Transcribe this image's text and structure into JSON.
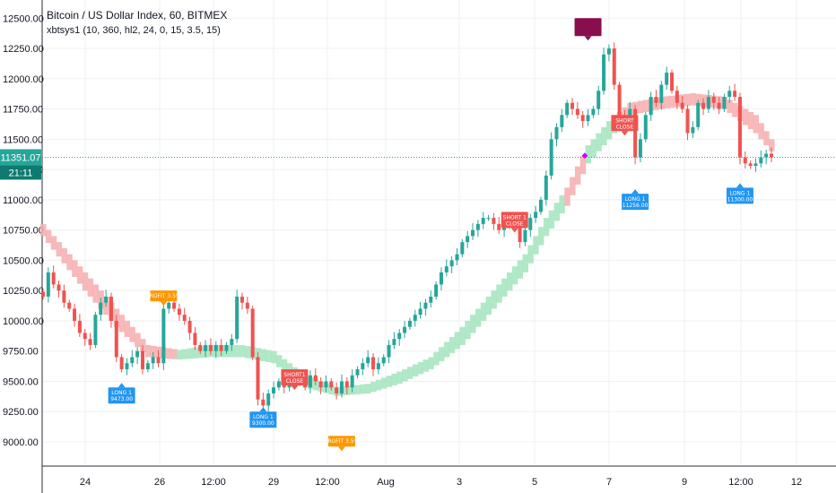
{
  "header": {
    "title": "Bitcoin / US Dollar Index, 60, BITMEX",
    "indicator": "xbtsys1 (10, 360, hl2, 24, 0, 15, 3.5, 15)"
  },
  "price_badge": {
    "value": "11351.07",
    "countdown": "21:11"
  },
  "colors": {
    "up": "#26a69a",
    "down": "#ef5350",
    "band_up": "#a8e6c1",
    "band_down": "#f6b1b1",
    "long_tag": "#2196f3",
    "short_tag": "#ef5350",
    "profit_tag": "#ff9800",
    "top_tag": "#880e4f",
    "price_line": "#26a69a"
  },
  "chart_data": {
    "type": "candlestick",
    "y_ticks": [
      "12500.00",
      "12250.00",
      "12000.00",
      "11750.00",
      "11500.00",
      "11250.00",
      "11000.00",
      "10750.00",
      "10500.00",
      "10250.00",
      "10000.00",
      "9750.00",
      "9500.00",
      "9250.00",
      "9000.00"
    ],
    "ylim": [
      8800,
      12650
    ],
    "x_ticks": [
      "24",
      "26",
      "12:00",
      "29",
      "12:00",
      "Aug",
      "3",
      "5",
      "7",
      "9",
      "12:00",
      "12"
    ],
    "last_price": 11351.07,
    "close_path": [
      [
        0,
        10200
      ],
      [
        1,
        10400
      ],
      [
        2,
        10300
      ],
      [
        3,
        10250
      ],
      [
        4,
        10150
      ],
      [
        5,
        10100
      ],
      [
        6,
        10000
      ],
      [
        7,
        9900
      ],
      [
        8,
        9850
      ],
      [
        9,
        9800
      ],
      [
        10,
        10050
      ],
      [
        11,
        10150
      ],
      [
        12,
        10200
      ],
      [
        13,
        10000
      ],
      [
        14,
        9700
      ],
      [
        15,
        9600
      ],
      [
        16,
        9650
      ],
      [
        17,
        9700
      ],
      [
        18,
        9750
      ],
      [
        19,
        9600
      ],
      [
        20,
        9650
      ],
      [
        21,
        9700
      ],
      [
        22,
        9650
      ],
      [
        23,
        10100
      ],
      [
        24,
        10150
      ],
      [
        25,
        10100
      ],
      [
        26,
        10050
      ],
      [
        27,
        10000
      ],
      [
        28,
        9900
      ],
      [
        29,
        9800
      ],
      [
        30,
        9750
      ],
      [
        31,
        9800
      ],
      [
        32,
        9750
      ],
      [
        33,
        9800
      ],
      [
        34,
        9750
      ],
      [
        35,
        9800
      ],
      [
        36,
        9850
      ],
      [
        37,
        10200
      ],
      [
        38,
        10150
      ],
      [
        39,
        10100
      ],
      [
        40,
        9700
      ],
      [
        41,
        9350
      ],
      [
        42,
        9300
      ],
      [
        43,
        9400
      ],
      [
        44,
        9450
      ],
      [
        45,
        9500
      ],
      [
        46,
        9450
      ],
      [
        47,
        9500
      ],
      [
        48,
        9550
      ],
      [
        49,
        9500
      ],
      [
        50,
        9450
      ],
      [
        51,
        9550
      ],
      [
        52,
        9500
      ],
      [
        53,
        9450
      ],
      [
        54,
        9500
      ],
      [
        55,
        9450
      ],
      [
        56,
        9400
      ],
      [
        57,
        9500
      ],
      [
        58,
        9450
      ],
      [
        59,
        9550
      ],
      [
        60,
        9600
      ],
      [
        61,
        9650
      ],
      [
        62,
        9700
      ],
      [
        63,
        9600
      ],
      [
        64,
        9650
      ],
      [
        65,
        9700
      ],
      [
        66,
        9800
      ],
      [
        67,
        9850
      ],
      [
        68,
        9900
      ],
      [
        69,
        9950
      ],
      [
        70,
        10000
      ],
      [
        71,
        10050
      ],
      [
        72,
        10100
      ],
      [
        73,
        10150
      ],
      [
        74,
        10200
      ],
      [
        75,
        10300
      ],
      [
        76,
        10400
      ],
      [
        77,
        10450
      ],
      [
        78,
        10500
      ],
      [
        79,
        10550
      ],
      [
        80,
        10650
      ],
      [
        81,
        10700
      ],
      [
        82,
        10750
      ],
      [
        83,
        10800
      ],
      [
        84,
        10850
      ],
      [
        85,
        10850
      ],
      [
        86,
        10800
      ],
      [
        87,
        10750
      ],
      [
        88,
        10800
      ],
      [
        89,
        10850
      ],
      [
        90,
        10800
      ],
      [
        91,
        10650
      ],
      [
        92,
        10750
      ],
      [
        93,
        10850
      ],
      [
        94,
        10900
      ],
      [
        95,
        11000
      ],
      [
        96,
        11200
      ],
      [
        97,
        11500
      ],
      [
        98,
        11600
      ],
      [
        99,
        11700
      ],
      [
        100,
        11800
      ],
      [
        101,
        11750
      ],
      [
        102,
        11700
      ],
      [
        103,
        11650
      ],
      [
        104,
        11700
      ],
      [
        105,
        11750
      ],
      [
        106,
        11900
      ],
      [
        107,
        12200
      ],
      [
        108,
        12250
      ],
      [
        109,
        11950
      ],
      [
        110,
        11700
      ],
      [
        111,
        11600
      ],
      [
        112,
        11750
      ],
      [
        113,
        11350
      ],
      [
        114,
        11500
      ],
      [
        115,
        11700
      ],
      [
        116,
        11850
      ],
      [
        117,
        11800
      ],
      [
        118,
        11950
      ],
      [
        119,
        12050
      ],
      [
        120,
        11900
      ],
      [
        121,
        11800
      ],
      [
        122,
        11750
      ],
      [
        123,
        11550
      ],
      [
        124,
        11600
      ],
      [
        125,
        11800
      ],
      [
        126,
        11750
      ],
      [
        127,
        11850
      ],
      [
        128,
        11800
      ],
      [
        129,
        11750
      ],
      [
        130,
        11850
      ],
      [
        131,
        11900
      ],
      [
        132,
        11850
      ],
      [
        133,
        11350
      ],
      [
        134,
        11300
      ],
      [
        135,
        11280
      ],
      [
        136,
        11300
      ],
      [
        137,
        11350
      ],
      [
        138,
        11380
      ],
      [
        139,
        11351
      ]
    ],
    "band": [
      [
        0,
        10700,
        10800
      ],
      [
        8,
        10250,
        10400
      ],
      [
        14,
        9950,
        10100
      ],
      [
        20,
        9700,
        9800
      ],
      [
        26,
        9680,
        9760
      ],
      [
        32,
        9700,
        9800
      ],
      [
        38,
        9700,
        9800
      ],
      [
        44,
        9650,
        9750
      ],
      [
        50,
        9450,
        9550
      ],
      [
        56,
        9380,
        9450
      ],
      [
        62,
        9400,
        9480
      ],
      [
        68,
        9480,
        9580
      ],
      [
        74,
        9600,
        9700
      ],
      [
        80,
        9800,
        9950
      ],
      [
        86,
        10100,
        10250
      ],
      [
        92,
        10400,
        10550
      ],
      [
        96,
        10700,
        10850
      ],
      [
        100,
        10950,
        11100
      ],
      [
        104,
        11300,
        11450
      ],
      [
        108,
        11500,
        11650
      ],
      [
        112,
        11700,
        11800
      ],
      [
        118,
        11750,
        11850
      ],
      [
        124,
        11780,
        11880
      ],
      [
        130,
        11750,
        11850
      ],
      [
        136,
        11550,
        11700
      ],
      [
        139,
        11400,
        11500
      ]
    ],
    "band_turns": [
      [
        0,
        "down"
      ],
      [
        26,
        "up"
      ],
      [
        88,
        "up"
      ],
      [
        100,
        "down"
      ],
      [
        104,
        "up"
      ],
      [
        110,
        "down"
      ]
    ],
    "signals": [
      {
        "label": "LONG 1",
        "sub": "9473.00",
        "kind": "long",
        "i": 15,
        "price": 9450
      },
      {
        "label": "PROFIT 3.5%",
        "sub": "",
        "kind": "profit",
        "i": 23,
        "price": 10250
      },
      {
        "label": "LONG 1",
        "sub": "9300.00",
        "kind": "long",
        "i": 42,
        "price": 9250
      },
      {
        "label": "SHORT1",
        "sub": "CLOSE",
        "kind": "short",
        "i": 48,
        "price": 9600
      },
      {
        "label": "PROFIT 3.5%",
        "sub": "",
        "kind": "profit",
        "i": 57,
        "price": 9050
      },
      {
        "label": "SHORT 1",
        "sub": "CLOSE",
        "kind": "short",
        "i": 90,
        "price": 10900
      },
      {
        "label": "",
        "sub": "",
        "kind": "top",
        "i": 104,
        "price": 12500
      },
      {
        "label": "SHORT",
        "sub": "CLOSE",
        "kind": "short",
        "i": 111,
        "price": 11700
      },
      {
        "label": "LONG 1",
        "sub": "11256.00",
        "kind": "long",
        "i": 113,
        "price": 11050
      },
      {
        "label": "LONG 1",
        "sub": "11300.00",
        "kind": "long",
        "i": 133,
        "price": 11100
      }
    ]
  }
}
